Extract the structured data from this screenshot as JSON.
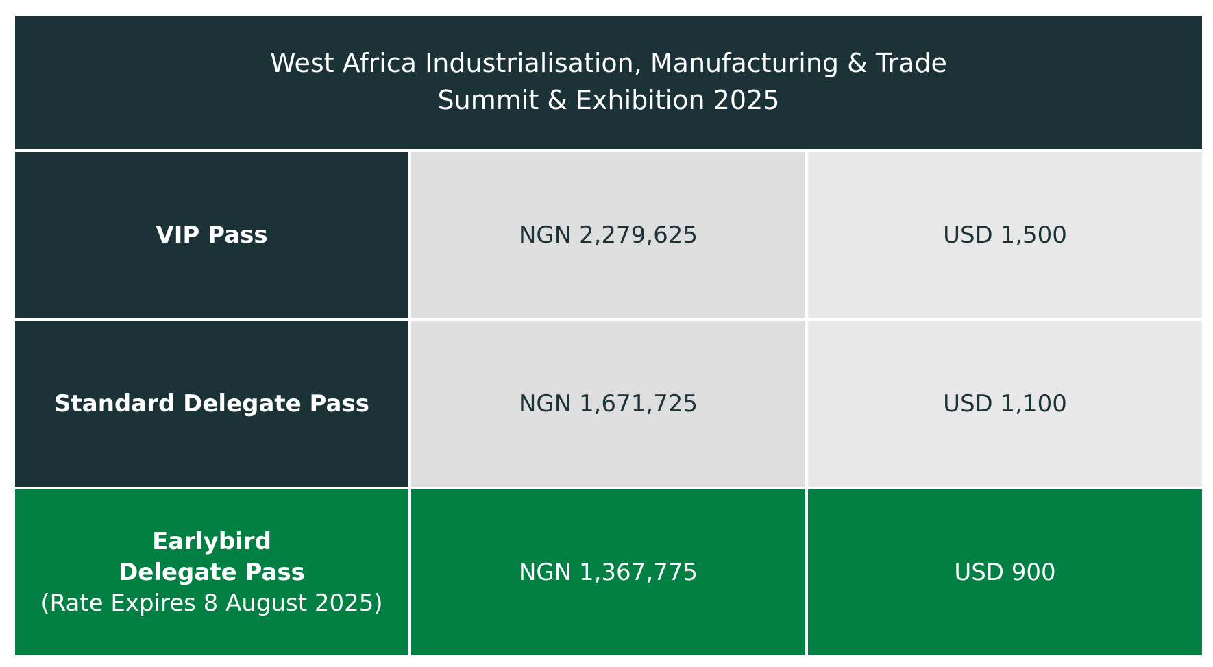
{
  "header": {
    "title_line1": "West Africa Industrialisation, Manufacturing & Trade",
    "title_line2": "Summit & Exhibition 2025"
  },
  "rows": [
    {
      "label": "VIP Pass",
      "ngn": "NGN 2,279,625",
      "usd": "USD 1,500"
    },
    {
      "label": "Standard Delegate Pass",
      "ngn": "NGN 1,671,725",
      "usd": "USD 1,100"
    },
    {
      "label_line1": "Earlybird",
      "label_line2": "Delegate Pass",
      "note": "(Rate Expires 8 August 2025)",
      "ngn": "NGN 1,367,775",
      "usd": "USD 900"
    }
  ],
  "colors": {
    "dark_teal": "#1b3236",
    "green": "#028044",
    "light_gray": "#dedede",
    "lighter_gray": "#e8e8e8"
  }
}
